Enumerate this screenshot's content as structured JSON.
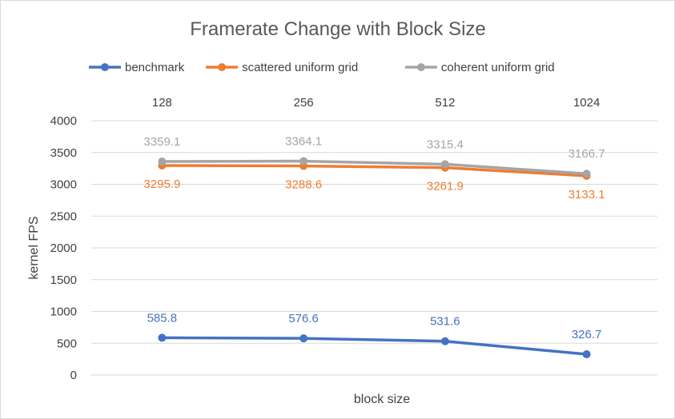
{
  "chart_data": {
    "type": "line",
    "title": "Framerate Change with Block Size",
    "xlabel": "block size",
    "ylabel": "kernel FPS",
    "categories": [
      "128",
      "256",
      "512",
      "1024"
    ],
    "ylim": [
      0,
      4000
    ],
    "yticks": [
      0,
      500,
      1000,
      1500,
      2000,
      2500,
      3000,
      3500,
      4000
    ],
    "grid": true,
    "legend_position": "top",
    "x_tick_position": "top",
    "series": [
      {
        "name": "benchmark",
        "color": "#4472c4",
        "values": [
          585.8,
          576.6,
          531.6,
          326.7
        ],
        "label_position": "above"
      },
      {
        "name": "scattered uniform grid",
        "color": "#ed7d31",
        "values": [
          3295.9,
          3288.6,
          3261.9,
          3133.1
        ],
        "label_position": "below"
      },
      {
        "name": "coherent uniform grid",
        "color": "#a5a5a5",
        "values": [
          3359.1,
          3364.1,
          3315.4,
          3166.7
        ],
        "label_position": "above"
      }
    ]
  }
}
